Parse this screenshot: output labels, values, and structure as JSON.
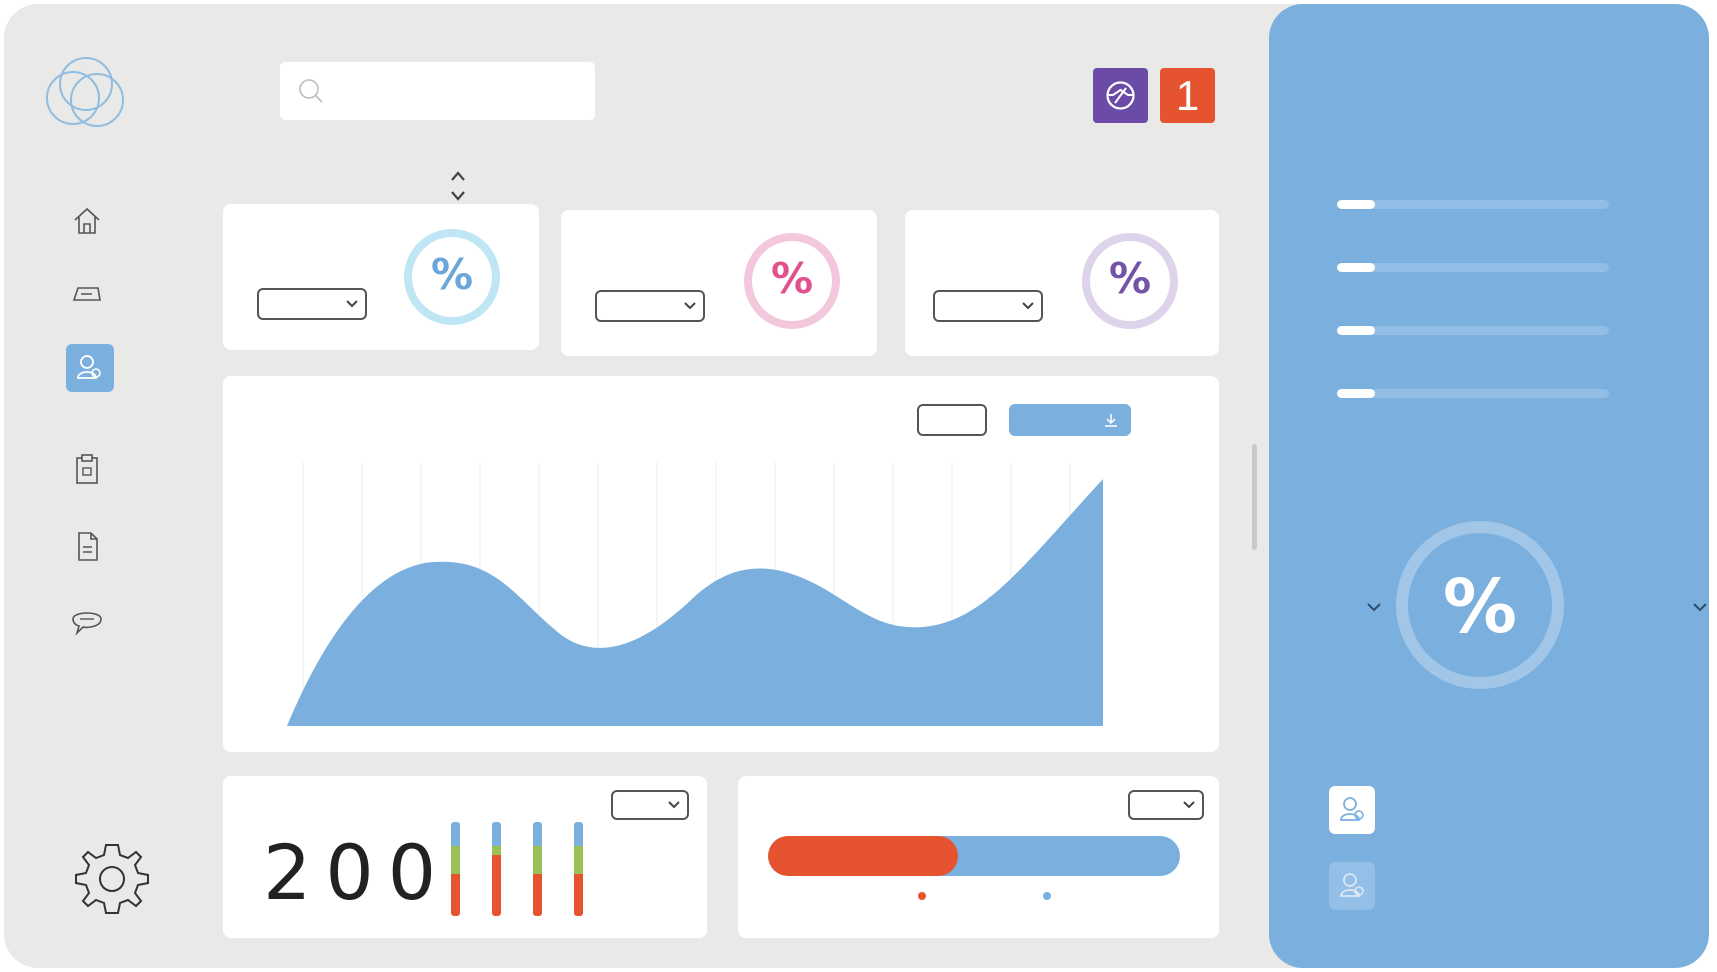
{
  "header": {
    "search": {
      "value": "",
      "placeholder": ""
    },
    "notification_count": "1"
  },
  "kpi_cards": [
    {
      "percent_symbol": "%",
      "ring_color": "#bfe6f4",
      "text_color": "#6aa6d8"
    },
    {
      "percent_symbol": "%",
      "ring_color": "#f4c8dc",
      "text_color": "#e0528d"
    },
    {
      "percent_symbol": "%",
      "ring_color": "#ddd3ea",
      "text_color": "#7353a6"
    }
  ],
  "panel": {
    "progress": [
      0.14,
      0.14,
      0.14,
      0.14
    ],
    "gauge_symbol": "%"
  },
  "counter": {
    "value": "200"
  },
  "mini_bars": [
    {
      "blue": 0.25,
      "green": 0.3,
      "orange": 0.45
    },
    {
      "blue": 0.25,
      "green": 0.1,
      "orange": 0.65
    },
    {
      "blue": 0.25,
      "green": 0.3,
      "orange": 0.45
    },
    {
      "blue": 0.25,
      "green": 0.3,
      "orange": 0.45
    }
  ],
  "split_bar": {
    "red_fraction": 0.46
  },
  "colors": {
    "accent_blue": "#7aafde",
    "orange": "#e5532f",
    "green": "#9ac056",
    "purple": "#6b4aa8",
    "frame": "#e9e9e7"
  },
  "icons": [
    "logo-icon",
    "search-icon",
    "home-icon",
    "inbox-icon",
    "users-icon",
    "clipboard-icon",
    "document-icon",
    "chat-icon",
    "gear-icon",
    "support-icon",
    "sort-icon",
    "download-icon",
    "user-icon"
  ]
}
